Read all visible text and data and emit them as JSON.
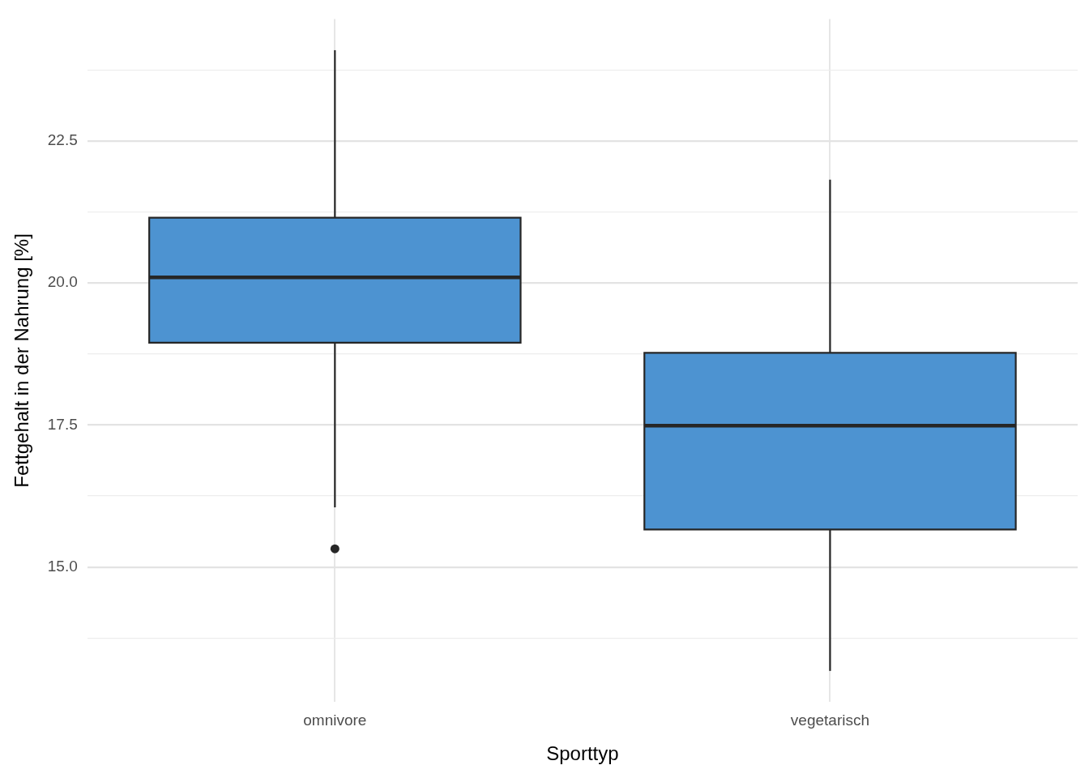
{
  "chart_data": {
    "type": "box",
    "xlabel": "Sporttyp",
    "ylabel": "Fettgehalt in der Nahrung [%]",
    "categories": [
      "omnivore",
      "vegetarisch"
    ],
    "color": "#4d93d1",
    "boxes": [
      {
        "low": 16.05,
        "q1": 18.95,
        "median": 20.1,
        "q3": 21.15,
        "high": 24.1,
        "outliers": [
          15.32
        ]
      },
      {
        "low": 13.17,
        "q1": 15.66,
        "median": 17.49,
        "q3": 18.77,
        "high": 21.82
      }
    ],
    "ylim": [
      12.62,
      24.65
    ],
    "yticks": [
      {
        "value": 13.75,
        "label": null
      },
      {
        "value": 15,
        "label": "15.0"
      },
      {
        "value": 16.25,
        "label": null
      },
      {
        "value": 17.5,
        "label": "17.5"
      },
      {
        "value": 18.75,
        "label": null
      },
      {
        "value": 20,
        "label": "20.0"
      },
      {
        "value": 21.25,
        "label": null
      },
      {
        "value": 22.5,
        "label": "22.5"
      },
      {
        "value": 23.75,
        "label": null
      }
    ],
    "grid": true,
    "legend": false
  }
}
